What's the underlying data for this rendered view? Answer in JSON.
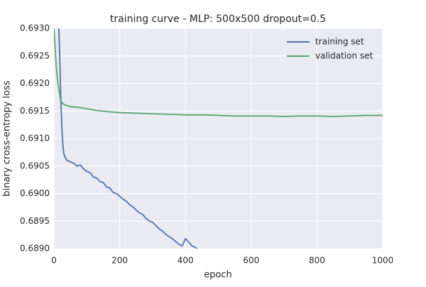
{
  "chart_data": {
    "type": "line",
    "title": "training curve - MLP: 500x500 dropout=0.5",
    "xlabel": "epoch",
    "ylabel": "binary cross-entropy loss",
    "xlim": [
      0,
      1000
    ],
    "ylim": [
      0.689,
      0.693
    ],
    "xticks": [
      0,
      200,
      400,
      600,
      800,
      1000
    ],
    "yticks": [
      {
        "value": 0.689,
        "label": "0.6890"
      },
      {
        "value": 0.6895,
        "label": "0.6895"
      },
      {
        "value": 0.69,
        "label": "0.6900"
      },
      {
        "value": 0.6905,
        "label": "0.6905"
      },
      {
        "value": 0.691,
        "label": "0.6910"
      },
      {
        "value": 0.6915,
        "label": "0.6915"
      },
      {
        "value": 0.692,
        "label": "0.6920"
      },
      {
        "value": 0.6925,
        "label": "0.6925"
      },
      {
        "value": 0.693,
        "label": "0.6930"
      }
    ],
    "grid": true,
    "legend": "upper right",
    "series": [
      {
        "name": "training set",
        "color": "#4c72b0",
        "x": [
          15,
          18,
          21,
          24,
          27,
          30,
          35,
          40,
          50,
          60,
          70,
          80,
          90,
          100,
          110,
          120,
          130,
          140,
          150,
          160,
          170,
          180,
          190,
          200,
          210,
          220,
          230,
          240,
          250,
          260,
          270,
          280,
          290,
          300,
          310,
          320,
          330,
          340,
          350,
          360,
          370,
          380,
          390,
          400,
          410,
          420,
          430,
          440,
          450,
          460,
          470,
          480
        ],
        "values": [
          0.693,
          0.6924,
          0.6917,
          0.6912,
          0.6909,
          0.69072,
          0.69065,
          0.6906,
          0.69058,
          0.69055,
          0.6905,
          0.69052,
          0.69045,
          0.6904,
          0.69038,
          0.6903,
          0.69028,
          0.69022,
          0.6902,
          0.69012,
          0.6901,
          0.69002,
          0.69,
          0.68995,
          0.6899,
          0.68986,
          0.6898,
          0.68976,
          0.6897,
          0.68965,
          0.68962,
          0.68955,
          0.6895,
          0.68948,
          0.68942,
          0.68936,
          0.68932,
          0.68926,
          0.68922,
          0.68918,
          0.68913,
          0.68908,
          0.68905,
          0.68918,
          0.68912,
          0.68905,
          0.68902,
          0.68898,
          0.68895,
          0.68892,
          0.6889,
          0.68888
        ]
      },
      {
        "name": "validation set",
        "color": "#55a868",
        "x": [
          0,
          3,
          6,
          10,
          15,
          20,
          25,
          30,
          40,
          50,
          70,
          100,
          130,
          160,
          200,
          250,
          300,
          350,
          400,
          450,
          500,
          550,
          600,
          650,
          700,
          750,
          800,
          850,
          900,
          950,
          1000
        ],
        "values": [
          0.693,
          0.6927,
          0.6924,
          0.6921,
          0.6919,
          0.6917,
          0.69165,
          0.69162,
          0.6916,
          0.69158,
          0.69157,
          0.69154,
          0.69151,
          0.69149,
          0.69147,
          0.69146,
          0.69145,
          0.69144,
          0.69143,
          0.69143,
          0.69142,
          0.69141,
          0.69141,
          0.69141,
          0.6914,
          0.69141,
          0.69141,
          0.6914,
          0.69141,
          0.69142,
          0.69142
        ]
      }
    ]
  }
}
